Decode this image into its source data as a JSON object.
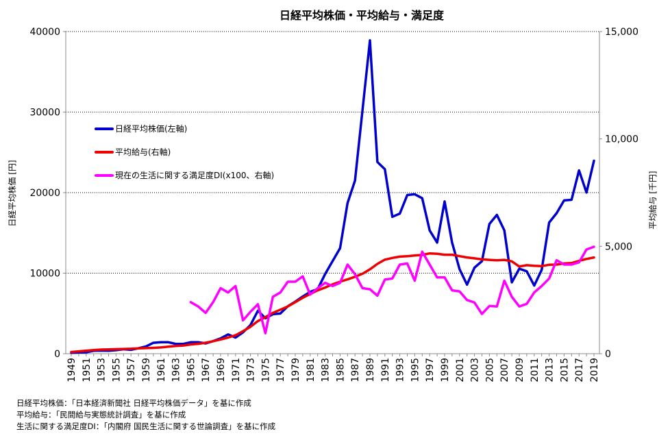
{
  "chart_data": {
    "type": "line",
    "title": "日経平均株価・平均給与・満足度",
    "ylabel_left": "日経平均株価 [円]",
    "ylabel_right": "平均給与 [千円]",
    "ylim_left": [
      0,
      40000
    ],
    "ylim_right": [
      0,
      15000
    ],
    "yticks_left": [
      "0",
      "10000",
      "20000",
      "30000",
      "40000"
    ],
    "yticks_right": [
      "0",
      "5,000",
      "10,000",
      "15,000"
    ],
    "grid": "horizontal dotted",
    "legend_placement": "upper-left",
    "x": [
      1949,
      1950,
      1951,
      1952,
      1953,
      1954,
      1955,
      1956,
      1957,
      1958,
      1959,
      1960,
      1961,
      1962,
      1963,
      1964,
      1965,
      1966,
      1967,
      1968,
      1969,
      1970,
      1971,
      1972,
      1973,
      1974,
      1975,
      1976,
      1977,
      1978,
      1979,
      1980,
      1981,
      1982,
      1983,
      1984,
      1985,
      1986,
      1987,
      1988,
      1989,
      1990,
      1991,
      1992,
      1993,
      1994,
      1995,
      1996,
      1997,
      1998,
      1999,
      2000,
      2001,
      2002,
      2003,
      2004,
      2005,
      2006,
      2007,
      2008,
      2009,
      2010,
      2011,
      2012,
      2013,
      2014,
      2015,
      2016,
      2017,
      2018,
      2019
    ],
    "x_tick_labels": [
      "1949",
      "1951",
      "1953",
      "1955",
      "1957",
      "1959",
      "1961",
      "1963",
      "1965",
      "1967",
      "1969",
      "1971",
      "1973",
      "1975",
      "1977",
      "1979",
      "1981",
      "1983",
      "1985",
      "1987",
      "1989",
      "1991",
      "1993",
      "1995",
      "1997",
      "1999",
      "2001",
      "2003",
      "2005",
      "2007",
      "2009",
      "2011",
      "2013",
      "2015",
      "2017",
      "2019"
    ],
    "series": [
      {
        "name": "日経平均株価(左軸)",
        "axis": "left",
        "color": "#0000CC",
        "values": [
          110,
          160,
          170,
          360,
          380,
          360,
          430,
          550,
          480,
          670,
          900,
          1350,
          1430,
          1420,
          1220,
          1220,
          1420,
          1430,
          1280,
          1560,
          1900,
          2390,
          2000,
          2650,
          3560,
          5340,
          4400,
          4900,
          4990,
          5900,
          6460,
          7100,
          7680,
          8020,
          9890,
          11500,
          13100,
          18700,
          21500,
          30200,
          38900,
          23800,
          22900,
          17000,
          17400,
          19700,
          19800,
          19300,
          15300,
          13800,
          18900,
          13800,
          10500,
          8570,
          10680,
          11490,
          16110,
          17230,
          15310,
          8860,
          10550,
          10230,
          8460,
          10400,
          16290,
          17450,
          19030,
          19110,
          22760,
          20010,
          23960
        ]
      },
      {
        "name": "平均給与(右軸)",
        "axis": "right",
        "color": "#EE0000",
        "values": [
          80,
          110,
          140,
          170,
          190,
          200,
          210,
          220,
          230,
          250,
          260,
          270,
          290,
          330,
          360,
          380,
          430,
          460,
          510,
          580,
          660,
          750,
          860,
          1050,
          1250,
          1520,
          1700,
          1900,
          2050,
          2200,
          2400,
          2600,
          2780,
          2950,
          3080,
          3230,
          3350,
          3460,
          3580,
          3720,
          3930,
          4180,
          4380,
          4460,
          4520,
          4540,
          4570,
          4600,
          4670,
          4650,
          4610,
          4610,
          4540,
          4480,
          4440,
          4390,
          4370,
          4350,
          4370,
          4300,
          4060,
          4120,
          4090,
          4080,
          4140,
          4150,
          4200,
          4220,
          4320,
          4410,
          4480
        ]
      },
      {
        "name": "現在の生活に関する満足度DI(x100、右軸)",
        "axis": "right",
        "color": "#FF00FF",
        "values": [
          null,
          null,
          null,
          null,
          null,
          null,
          null,
          null,
          null,
          null,
          null,
          null,
          null,
          null,
          null,
          null,
          2400,
          2200,
          1900,
          2400,
          3050,
          2850,
          3150,
          1550,
          1950,
          2300,
          950,
          2650,
          2850,
          3350,
          3350,
          3600,
          2750,
          3050,
          3300,
          3150,
          3300,
          4150,
          3700,
          3050,
          3000,
          2700,
          3450,
          3500,
          4150,
          4200,
          3400,
          4750,
          4150,
          3550,
          3550,
          2950,
          2900,
          2500,
          2380,
          1850,
          2220,
          2200,
          3400,
          2650,
          2200,
          2320,
          2850,
          3150,
          3500,
          4350,
          4150,
          4150,
          4250,
          4850,
          4980
        ]
      }
    ]
  },
  "source_notes": [
    "日経平均株価：「日本経済新聞社 日経平均株価データ」を基に作成",
    "平均給与：「民間給与実態統計調査」を基に作成",
    "生活に関する満足度DI：「内閣府 国民生活に関する世論調査」を基に作成"
  ]
}
